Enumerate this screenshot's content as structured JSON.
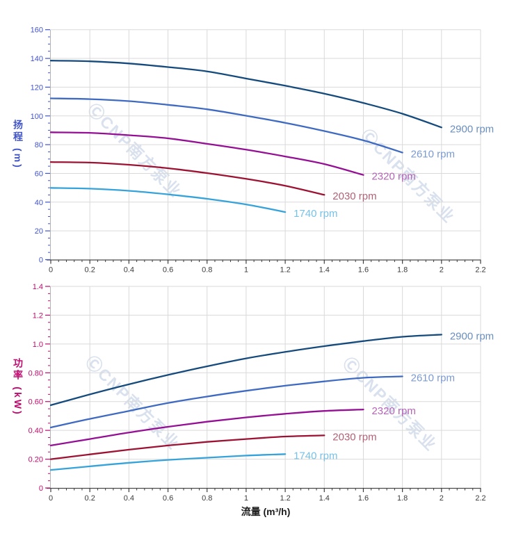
{
  "watermark": {
    "text": "ⒸCNP南方泵业",
    "color": "#a9bdd9",
    "opacity": 0.45
  },
  "style": {
    "background": "#ffffff",
    "grid_color": "#d9d9d9",
    "left_spine_color": "#b3b3b3",
    "x_axis_color": "#3c3c3c",
    "bottom_spine_color": "#4a4a4a"
  },
  "chart_data": [
    {
      "type": "line",
      "title": "",
      "ylabel": "扬程 (m)",
      "xlabel": "",
      "axis_color": "#4154c8",
      "grid": true,
      "xlim": [
        0,
        2.2
      ],
      "ylim": [
        0,
        160
      ],
      "x_ticks": {
        "values": [
          0,
          0.2,
          0.4,
          0.6,
          0.8,
          1,
          1.2,
          1.4,
          1.6,
          1.8,
          2,
          2.2
        ],
        "labels": [
          "0",
          "0.2",
          "0.4",
          "0.6",
          "0.8",
          "1",
          "1.2",
          "1.4",
          "1.6",
          "1.8",
          "2",
          "2.2"
        ],
        "minors_between": 4
      },
      "y_ticks": {
        "values": [
          0,
          20,
          40,
          60,
          80,
          100,
          120,
          140,
          160
        ],
        "labels": [
          "0",
          "20",
          "40",
          "60",
          "80",
          "100",
          "120",
          "140",
          "160"
        ],
        "minors_between": 3
      },
      "series": [
        {
          "name": "2900 rpm",
          "color": "#154a7d",
          "label_color": "#6a8fbe",
          "x": [
            0,
            0.2,
            0.4,
            0.6,
            0.8,
            1,
            1.2,
            1.4,
            1.6,
            1.8,
            2
          ],
          "y": [
            138.5,
            138,
            136.5,
            134,
            131,
            126,
            121,
            115.5,
            109,
            101.5,
            92
          ]
        },
        {
          "name": "2610 rpm",
          "color": "#3e6ac1",
          "label_color": "#7b9ad4",
          "x": [
            0,
            0.2,
            0.4,
            0.6,
            0.8,
            1,
            1.2,
            1.4,
            1.6,
            1.8
          ],
          "y": [
            112.2,
            111.7,
            110.3,
            107.7,
            104.6,
            100.1,
            95.2,
            89.5,
            83,
            74.5
          ]
        },
        {
          "name": "2320 rpm",
          "color": "#950f95",
          "label_color": "#b565b5",
          "x": [
            0,
            0.2,
            0.4,
            0.6,
            0.8,
            1,
            1.2,
            1.4,
            1.6
          ],
          "y": [
            88.6,
            88.2,
            86.6,
            84.4,
            80.6,
            76.5,
            71.8,
            66.5,
            58.9
          ]
        },
        {
          "name": "2030 rpm",
          "color": "#9d1233",
          "label_color": "#b26175",
          "x": [
            0,
            0.2,
            0.4,
            0.6,
            0.8,
            1,
            1.2,
            1.4
          ],
          "y": [
            67.9,
            67.5,
            66,
            63.6,
            60.2,
            56.2,
            51.4,
            45.1
          ]
        },
        {
          "name": "1740 rpm",
          "color": "#35a3da",
          "label_color": "#77c1e8",
          "x": [
            0,
            0.2,
            0.4,
            0.6,
            0.8,
            1,
            1.2
          ],
          "y": [
            49.9,
            49.4,
            47.9,
            45.4,
            42.3,
            38.4,
            33.1
          ]
        }
      ]
    },
    {
      "type": "line",
      "title": "",
      "ylabel": "功率 (kW)",
      "xlabel": "流量 (m³/h)",
      "axis_color": "#c00a6e",
      "grid": true,
      "xlim": [
        0,
        2.2
      ],
      "ylim": [
        0,
        1.4
      ],
      "x_ticks": {
        "values": [
          0,
          0.2,
          0.4,
          0.6,
          0.8,
          1,
          1.2,
          1.4,
          1.6,
          1.8,
          2,
          2.2
        ],
        "labels": [
          "0",
          "0.2",
          "0.4",
          "0.6",
          "0.8",
          "1",
          "1.2",
          "1.4",
          "1.6",
          "1.8",
          "2",
          "2.2"
        ],
        "minors_between": 4
      },
      "y_ticks": {
        "values": [
          0,
          0.2,
          0.4,
          0.6,
          0.8,
          1,
          1.2,
          1.4
        ],
        "labels": [
          "0",
          "0.20",
          "0.40",
          "0.60",
          "0.80",
          "1.0",
          "1.2",
          "1.4"
        ],
        "minors_between": 3
      },
      "series": [
        {
          "name": "2900 rpm",
          "color": "#154a7d",
          "label_color": "#6a8fbe",
          "x": [
            0,
            0.2,
            0.4,
            0.6,
            0.8,
            1,
            1.2,
            1.4,
            1.6,
            1.8,
            2
          ],
          "y": [
            0.575,
            0.65,
            0.72,
            0.785,
            0.845,
            0.9,
            0.945,
            0.985,
            1.02,
            1.05,
            1.065
          ]
        },
        {
          "name": "2610 rpm",
          "color": "#3e6ac1",
          "label_color": "#7b9ad4",
          "x": [
            0,
            0.2,
            0.4,
            0.6,
            0.8,
            1,
            1.2,
            1.4,
            1.6,
            1.8
          ],
          "y": [
            0.42,
            0.48,
            0.535,
            0.59,
            0.635,
            0.675,
            0.71,
            0.74,
            0.765,
            0.775
          ]
        },
        {
          "name": "2320 rpm",
          "color": "#950f95",
          "label_color": "#b565b5",
          "x": [
            0,
            0.2,
            0.4,
            0.6,
            0.8,
            1,
            1.2,
            1.4,
            1.6
          ],
          "y": [
            0.295,
            0.34,
            0.385,
            0.425,
            0.46,
            0.49,
            0.515,
            0.535,
            0.545
          ]
        },
        {
          "name": "2030 rpm",
          "color": "#9d1233",
          "label_color": "#b26175",
          "x": [
            0,
            0.2,
            0.4,
            0.6,
            0.8,
            1,
            1.2,
            1.4
          ],
          "y": [
            0.2,
            0.233,
            0.266,
            0.295,
            0.32,
            0.34,
            0.357,
            0.365
          ]
        },
        {
          "name": "1740 rpm",
          "color": "#35a3da",
          "label_color": "#77c1e8",
          "x": [
            0,
            0.2,
            0.4,
            0.6,
            0.8,
            1,
            1.2
          ],
          "y": [
            0.125,
            0.15,
            0.175,
            0.195,
            0.21,
            0.225,
            0.235
          ]
        }
      ]
    }
  ]
}
